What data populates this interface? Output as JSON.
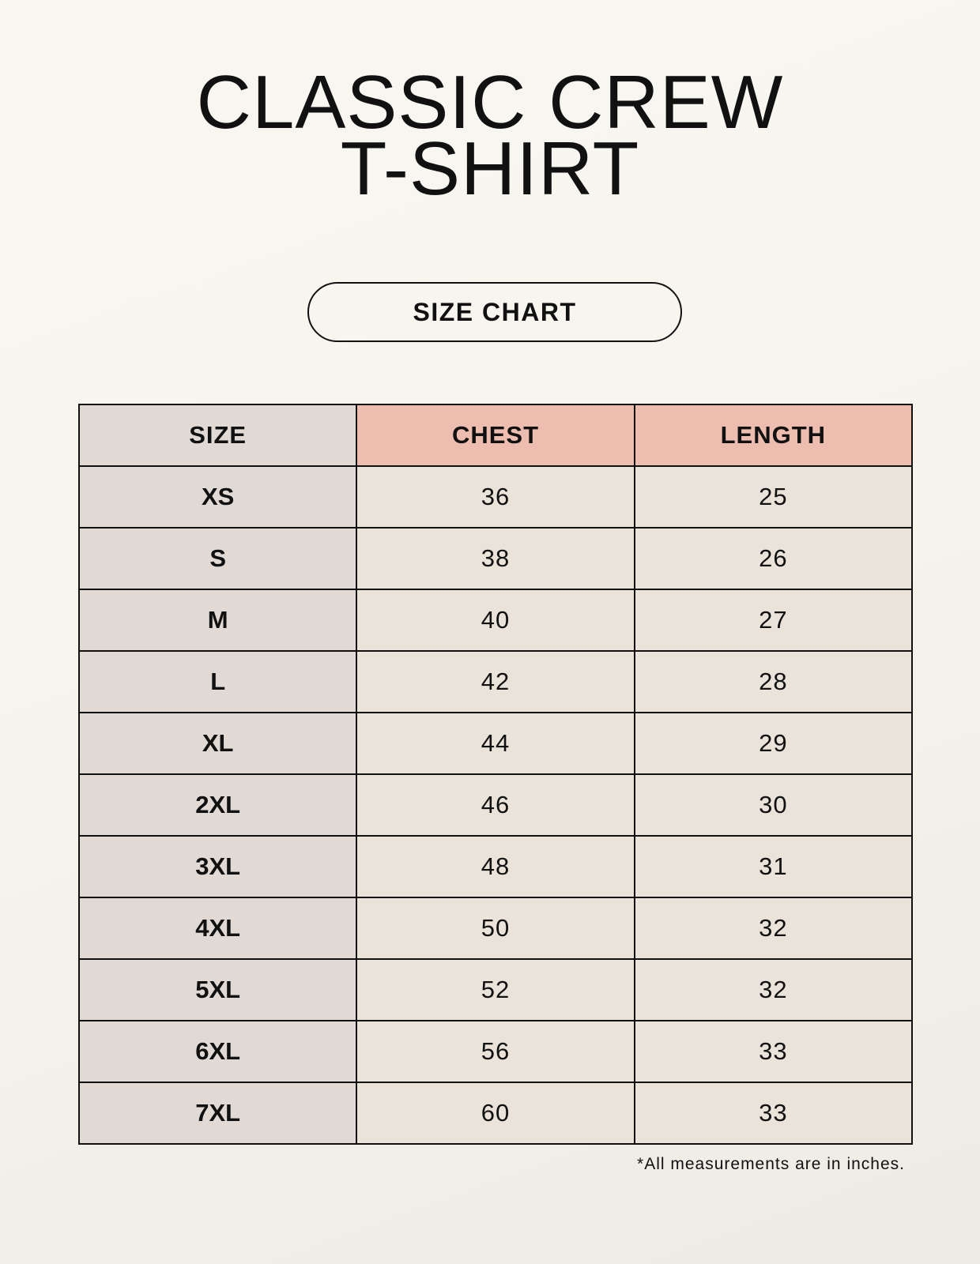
{
  "title": {
    "line1": "CLASSIC CREW",
    "line2": "T-SHIRT"
  },
  "badge": "SIZE CHART",
  "table": {
    "headers": [
      "SIZE",
      "CHEST",
      "LENGTH"
    ],
    "rows": [
      [
        "XS",
        "36",
        "25"
      ],
      [
        "S",
        "38",
        "26"
      ],
      [
        "M",
        "40",
        "27"
      ],
      [
        "L",
        "42",
        "28"
      ],
      [
        "XL",
        "44",
        "29"
      ],
      [
        "2XL",
        "46",
        "30"
      ],
      [
        "3XL",
        "48",
        "31"
      ],
      [
        "4XL",
        "50",
        "32"
      ],
      [
        "5XL",
        "52",
        "32"
      ],
      [
        "6XL",
        "56",
        "33"
      ],
      [
        "7XL",
        "60",
        "33"
      ]
    ]
  },
  "footnote": "*All measurements are in inches.",
  "colors": {
    "size_column": "#e0d9d4",
    "header_accent": "#edbdb0",
    "value_cells": "#eae3d9"
  }
}
